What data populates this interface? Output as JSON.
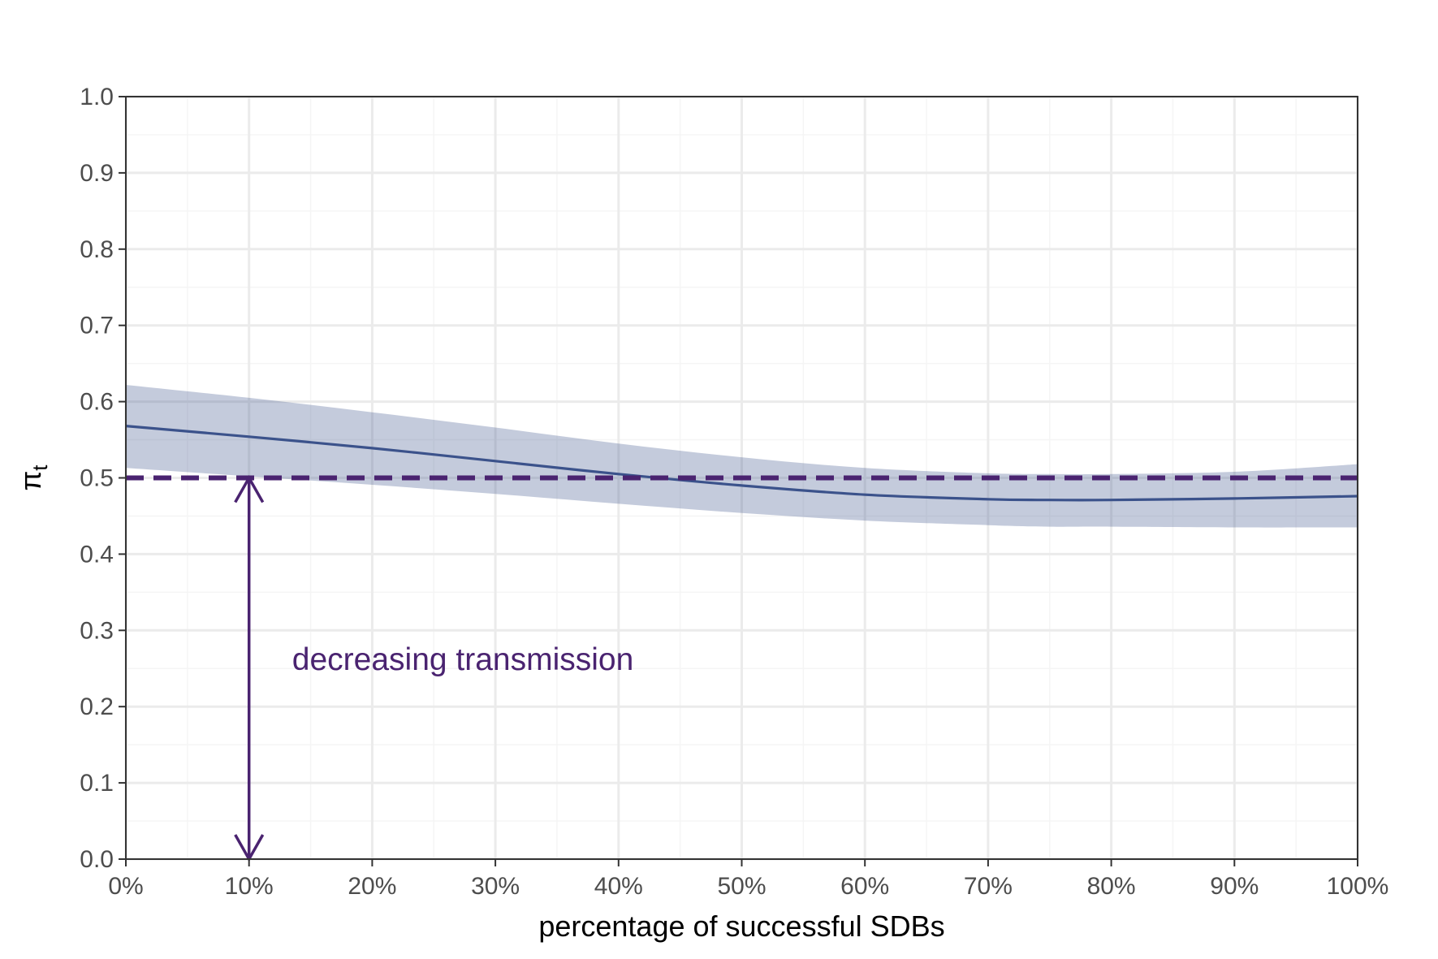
{
  "chart_data": {
    "type": "line",
    "title": "",
    "xlabel": "percentage of successful SDBs",
    "ylabel_main": "π",
    "ylabel_sub": "t",
    "xlim": [
      0,
      100
    ],
    "ylim": [
      0,
      1
    ],
    "x_ticks": [
      0,
      10,
      20,
      30,
      40,
      50,
      60,
      70,
      80,
      90,
      100
    ],
    "x_tick_labels": [
      "0%",
      "10%",
      "20%",
      "30%",
      "40%",
      "50%",
      "60%",
      "70%",
      "80%",
      "90%",
      "100%"
    ],
    "y_ticks": [
      0,
      0.1,
      0.2,
      0.3,
      0.4,
      0.5,
      0.6,
      0.7,
      0.8,
      0.9,
      1.0
    ],
    "y_tick_labels": [
      "0.0",
      "0.1",
      "0.2",
      "0.3",
      "0.4",
      "0.5",
      "0.6",
      "0.7",
      "0.8",
      "0.9",
      "1.0"
    ],
    "grid": true,
    "series": [
      {
        "x": [
          0,
          10,
          20,
          30,
          40,
          50,
          60,
          70,
          75,
          80,
          90,
          100
        ],
        "values": [
          0.568,
          0.554,
          0.539,
          0.522,
          0.505,
          0.49,
          0.478,
          0.472,
          0.471,
          0.471,
          0.473,
          0.476
        ],
        "ci_lower": [
          0.513,
          0.502,
          0.491,
          0.479,
          0.466,
          0.454,
          0.444,
          0.438,
          0.436,
          0.436,
          0.435,
          0.435
        ],
        "ci_upper": [
          0.622,
          0.605,
          0.586,
          0.566,
          0.545,
          0.527,
          0.513,
          0.506,
          0.505,
          0.505,
          0.508,
          0.518
        ]
      }
    ],
    "reference_line": {
      "y": 0.5,
      "style": "dashed"
    },
    "arrow": {
      "x": 10,
      "y_from": 0.0,
      "y_to": 0.5
    },
    "annotation": {
      "text": "decreasing transmission",
      "x": 13.5,
      "y": 0.248
    },
    "colors": {
      "line": "#3b528b",
      "band": "#3b528b",
      "reference": "#4a2370",
      "arrow": "#4a2370",
      "annotation": "#4a2370",
      "grid_major": "#ebebeb",
      "grid_minor": "#f5f5f5",
      "panel_border": "#333333"
    }
  }
}
